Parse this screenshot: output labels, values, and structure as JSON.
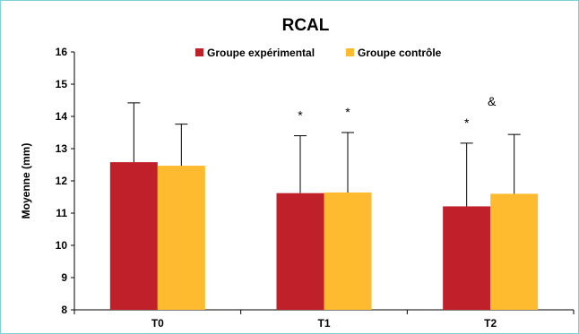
{
  "chart_data": {
    "type": "bar",
    "title": "RCAL",
    "ylabel": "Moyenne (mm)",
    "xlabel": "",
    "categories": [
      "T0",
      "T1",
      "T2"
    ],
    "ylim": [
      8,
      16
    ],
    "yticks": [
      8,
      9,
      10,
      11,
      12,
      13,
      14,
      15,
      16
    ],
    "legend_position": "top-center",
    "grid": false,
    "series": [
      {
        "name": "Groupe expérimental",
        "color": "#c0202a",
        "values": [
          12.58,
          11.62,
          11.21
        ],
        "error_upper": [
          14.42,
          13.4,
          13.17
        ]
      },
      {
        "name": "Groupe contrôle",
        "color": "#ffbb2f",
        "values": [
          12.47,
          11.64,
          11.6
        ],
        "error_upper": [
          13.76,
          13.5,
          13.44
        ]
      }
    ],
    "annotations": [
      {
        "text": "*",
        "category": "T1",
        "series": 0
      },
      {
        "text": "*",
        "category": "T1",
        "series": 1
      },
      {
        "text": "*",
        "category": "T2",
        "series": 0
      },
      {
        "text": "&",
        "category": "T2",
        "series": 1
      }
    ]
  }
}
